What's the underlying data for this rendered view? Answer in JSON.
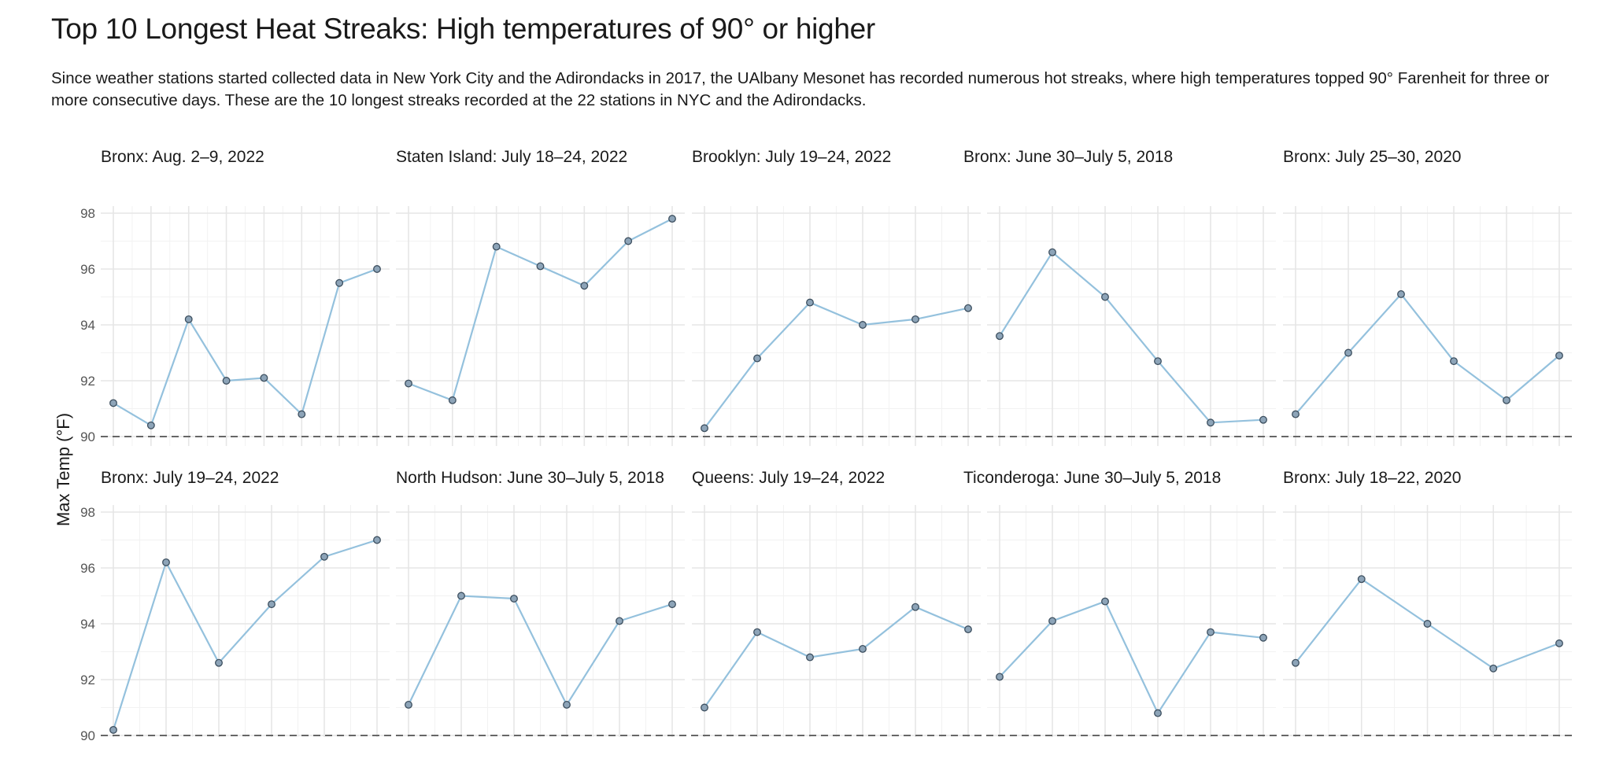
{
  "header": {
    "title": "Top 10 Longest Heat Streaks: High temperatures of 90° or higher",
    "subtitle": "Since weather stations started collected data in New York City and the Adirondacks in 2017, the UAlbany Mesonet has recorded numerous hot streaks, where high temperatures topped 90° Farenheit for three or more consecutive days. These are the 10 longest streaks recorded at the 22 stations in NYC and the Adirondacks."
  },
  "chart_data": {
    "type": "line",
    "ylabel": "Max Temp (°F)",
    "ylim": [
      89.5,
      98.3
    ],
    "yticks": [
      90,
      92,
      94,
      96,
      98
    ],
    "reference_line": 90,
    "grid": true,
    "colors": {
      "line": "#94c1dd",
      "point_fill": "#8da4b8",
      "point_stroke": "#3d4f5f",
      "grid_major": "#e6e6e6",
      "grid_minor": "#f2f2f2",
      "reference": "#666666"
    },
    "panels": [
      {
        "title": "Bronx: Aug. 2–9, 2022",
        "values": [
          91.2,
          90.4,
          94.2,
          92.0,
          92.1,
          90.8,
          95.5,
          96.0
        ]
      },
      {
        "title": "Staten Island: July 18–24, 2022",
        "values": [
          91.9,
          91.3,
          96.8,
          96.1,
          95.4,
          97.0,
          97.8
        ]
      },
      {
        "title": "Brooklyn: July 19–24, 2022",
        "values": [
          90.3,
          92.8,
          94.8,
          94.0,
          94.2,
          94.6
        ]
      },
      {
        "title": "Bronx: June 30–July 5, 2018",
        "values": [
          93.6,
          96.6,
          95.0,
          92.7,
          90.5,
          90.6
        ]
      },
      {
        "title": "Bronx: July 25–30, 2020",
        "values": [
          90.8,
          93.0,
          95.1,
          92.7,
          91.3,
          92.9
        ]
      },
      {
        "title": "Bronx: July 19–24, 2022",
        "values": [
          90.2,
          96.2,
          92.6,
          94.7,
          96.4,
          97.0
        ]
      },
      {
        "title": "North Hudson: June 30–July 5, 2018",
        "values": [
          91.1,
          95.0,
          94.9,
          91.1,
          94.1,
          94.7
        ]
      },
      {
        "title": "Queens: July 19–24, 2022",
        "values": [
          91.0,
          93.7,
          92.8,
          93.1,
          94.6,
          93.8
        ]
      },
      {
        "title": "Ticonderoga: June 30–July 5, 2018",
        "values": [
          92.1,
          94.1,
          94.8,
          90.8,
          93.7,
          93.5
        ]
      },
      {
        "title": "Bronx: July 18–22, 2020",
        "values": [
          92.6,
          95.6,
          94.0,
          92.4,
          93.3
        ]
      }
    ]
  }
}
